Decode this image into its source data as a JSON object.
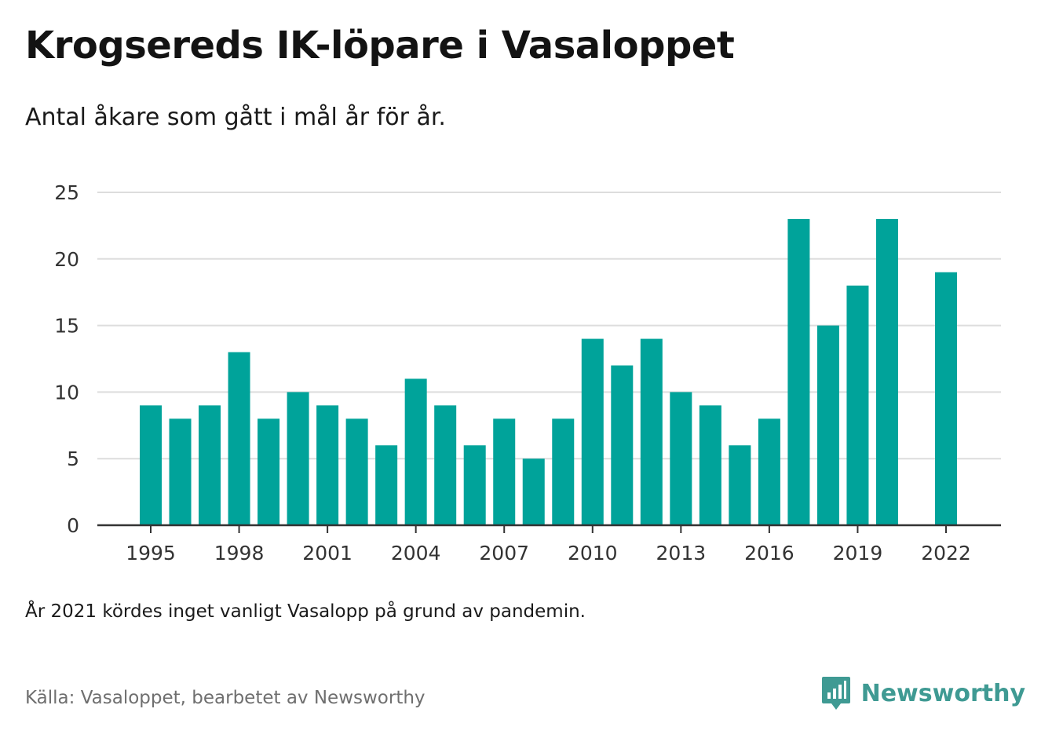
{
  "header": {
    "title": "Krogsereds IK-löpare i Vasaloppet",
    "subtitle": "Antal åkare som gått i mål år för år."
  },
  "footer": {
    "note": "År 2021 kördes inget vanligt Vasalopp på grund av pandemin.",
    "source": "Källa: Vasaloppet, bearbetet av Newsworthy",
    "brand": "Newsworthy",
    "brand_icon": "newsworthy-logo-icon"
  },
  "colors": {
    "bar": "#00a39a",
    "grid": "#dddddd",
    "axis": "#333333",
    "brand": "#3f9a93"
  },
  "chart_data": {
    "type": "bar",
    "title": "Krogsereds IK-löpare i Vasaloppet",
    "subtitle": "Antal åkare som gått i mål år för år.",
    "xlabel": "",
    "ylabel": "",
    "x": [
      1995,
      1996,
      1997,
      1998,
      1999,
      2000,
      2001,
      2002,
      2003,
      2004,
      2005,
      2006,
      2007,
      2008,
      2009,
      2010,
      2011,
      2012,
      2013,
      2014,
      2015,
      2016,
      2017,
      2018,
      2019,
      2020,
      2021,
      2022
    ],
    "values": [
      9,
      8,
      9,
      13,
      8,
      10,
      9,
      8,
      6,
      11,
      9,
      6,
      8,
      5,
      8,
      14,
      12,
      14,
      10,
      9,
      6,
      8,
      23,
      15,
      18,
      23,
      null,
      19
    ],
    "x_ticks": [
      "1995",
      "1998",
      "2001",
      "2004",
      "2007",
      "2010",
      "2013",
      "2016",
      "2019",
      "2022"
    ],
    "y_ticks": [
      0,
      5,
      10,
      15,
      20,
      25
    ],
    "ylim": [
      0,
      25
    ],
    "grid": true,
    "legend": "none"
  }
}
